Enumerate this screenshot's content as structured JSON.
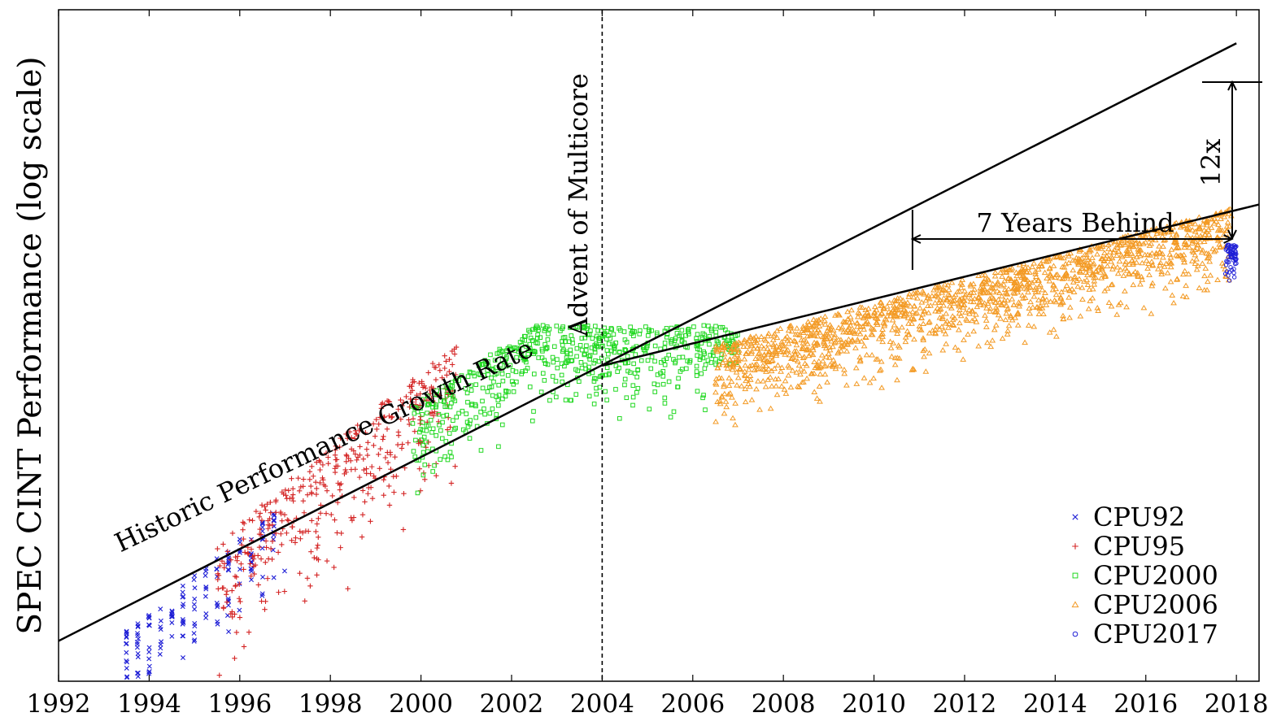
{
  "chart_data": {
    "type": "scatter",
    "title": "",
    "xlabel": "",
    "ylabel": "SPEC CINT Performance (log scale)",
    "y_scale": "log",
    "xlim": [
      1992,
      2018.5
    ],
    "x_ticks": [
      1992,
      1994,
      1996,
      1998,
      2000,
      2002,
      2004,
      2006,
      2008,
      2010,
      2012,
      2014,
      2016,
      2018
    ],
    "x_tick_labels": [
      "1992",
      "1994",
      "1996",
      "1998",
      "2000",
      "2002",
      "2004",
      "2006",
      "2008",
      "2010",
      "2012",
      "2014",
      "2016",
      "2018"
    ],
    "y_ticks_shown": false,
    "grid": false,
    "legend_position": "bottom-right",
    "series": [
      {
        "name": "CPU92",
        "marker": "x",
        "color": "#1f1fd6",
        "x_range": [
          1993.4,
          1996.9
        ]
      },
      {
        "name": "CPU95",
        "marker": "+",
        "color": "#d42424",
        "x_range": [
          1995.5,
          2000.8
        ]
      },
      {
        "name": "CPU2000",
        "marker": "square",
        "color": "#20d820",
        "x_range": [
          1999.8,
          2007.0
        ]
      },
      {
        "name": "CPU2006",
        "marker": "triangle",
        "color": "#f39a24",
        "x_range": [
          2006.5,
          2017.9
        ]
      },
      {
        "name": "CPU2017",
        "marker": "circle",
        "color": "#1f1fd6",
        "x_range": [
          2017.4,
          2018.0
        ]
      }
    ],
    "trend_lines": [
      {
        "from": [
          1992.0,
          0.06
        ],
        "to": [
          2018.0,
          0.95
        ]
      },
      {
        "from": [
          2004.0,
          0.47
        ],
        "to": [
          2018.5,
          0.71
        ]
      }
    ],
    "annotations": {
      "vline_label": "Advent of Multicore",
      "vline_x": 2004,
      "trend_label": "Historic Performance Growth Rate",
      "behind_label": "7 Years Behind",
      "behind_from_x": 2010.85,
      "behind_to_x": 2017.9,
      "gap_label": "12x"
    }
  }
}
